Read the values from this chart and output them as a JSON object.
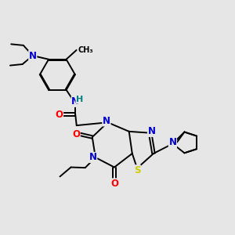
{
  "bg_color": "#e6e6e6",
  "bond_color": "#000000",
  "bond_width": 1.4,
  "atom_colors": {
    "N": "#0000cc",
    "O": "#ff0000",
    "S": "#cccc00",
    "C": "#000000",
    "H": "#008080"
  },
  "font_size_atom": 8.5,
  "font_size_small": 7.0,
  "xlim": [
    0.0,
    9.5
  ],
  "ylim": [
    1.0,
    9.5
  ]
}
